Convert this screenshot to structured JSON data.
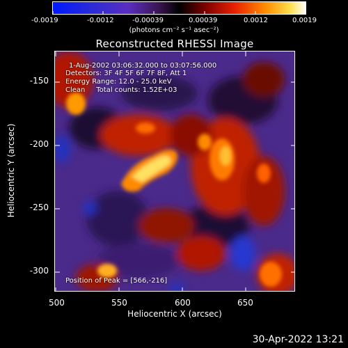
{
  "colorbar": {
    "ticks": [
      "-0.0019",
      "-0.0012",
      "-0.00039",
      "0.00039",
      "0.0012",
      "0.0019"
    ],
    "units": "(photons cm⁻² s⁻¹ asec⁻²)"
  },
  "title": "Reconstructed RHESSI Image",
  "annotations": {
    "time_range": "1-Aug-2002 03:06:32.000 to 03:07:56.000",
    "detectors": "Detectors: 3F 4F 5F 6F 7F 8F, Att 1",
    "energy": "Energy Range: 12.0 - 25.0 keV",
    "clean": "Clean     Total counts: 1.52E+03",
    "peak": "Position of Peak = [566,-216]"
  },
  "axes": {
    "xlabel": "Heliocentric X (arcsec)",
    "ylabel": "Heliocentric Y (arcsec)",
    "xticks": [
      "500",
      "550",
      "600",
      "650"
    ],
    "yticks": [
      "-150",
      "-200",
      "-250",
      "-300"
    ]
  },
  "timestamp": "30-Apr-2022 13:21"
}
